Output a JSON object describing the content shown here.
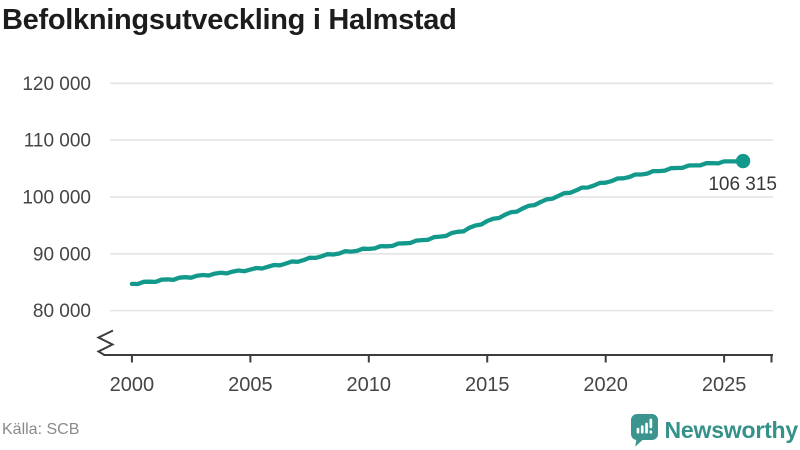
{
  "header": {
    "title": "Befolkningsutveckling i Halmstad"
  },
  "footer": {
    "source": "Källa: SCB",
    "brand_name": "Newsworthy"
  },
  "colors": {
    "line": "#12998b",
    "grid": "#e4e4e4",
    "axis": "#3d3d3d",
    "tick_text": "#454545",
    "title_text": "#1c1c1c",
    "annotation_text": "#383838",
    "source_text": "#8a8a8a",
    "brand": "#34928b",
    "background": "#ffffff"
  },
  "chart_data": {
    "type": "line",
    "title": "Befolkningsutveckling i Halmstad",
    "xlabel": "",
    "ylabel": "",
    "x_ticks": [
      2000,
      2005,
      2010,
      2015,
      2020,
      2025
    ],
    "y_ticks": [
      80000,
      90000,
      100000,
      110000,
      120000
    ],
    "y_tick_labels": [
      "80 000",
      "90 000",
      "100 000",
      "110 000",
      "120 000"
    ],
    "xlim": [
      1998.8,
      2027
    ],
    "ylim": [
      78000,
      122000
    ],
    "grid": "horizontal",
    "legend": "none",
    "axis_break_bottom_left": true,
    "series": [
      {
        "points": [
          [
            2000,
            84700
          ],
          [
            2001,
            85200
          ],
          [
            2002,
            85700
          ],
          [
            2003,
            86200
          ],
          [
            2004,
            86700
          ],
          [
            2005,
            87200
          ],
          [
            2006,
            87900
          ],
          [
            2007,
            88700
          ],
          [
            2008,
            89600
          ],
          [
            2009,
            90300
          ],
          [
            2010,
            90900
          ],
          [
            2011,
            91500
          ],
          [
            2012,
            92200
          ],
          [
            2013,
            93000
          ],
          [
            2014,
            94100
          ],
          [
            2015,
            95700
          ],
          [
            2016,
            97200
          ],
          [
            2017,
            98700
          ],
          [
            2018,
            100200
          ],
          [
            2019,
            101500
          ],
          [
            2020,
            102600
          ],
          [
            2021,
            103600
          ],
          [
            2022,
            104400
          ],
          [
            2023,
            105100
          ],
          [
            2024,
            105700
          ],
          [
            2025,
            106150
          ],
          [
            2025.8,
            106315
          ]
        ]
      }
    ],
    "annotation": {
      "x": 2025.8,
      "y": 106315,
      "label": "106 315"
    }
  }
}
